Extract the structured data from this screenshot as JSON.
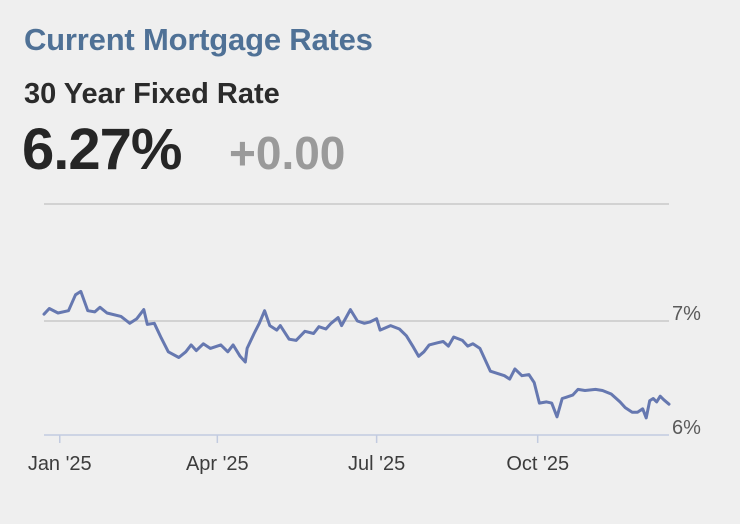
{
  "header": {
    "title": "Current Mortgage Rates",
    "subtitle": "30 Year Fixed Rate",
    "rate": "6.27%",
    "change": "+0.00"
  },
  "colors": {
    "title": "#4f7196",
    "line": "#6678b0",
    "grid": "#c9c9c9",
    "change": "#9a9a9a"
  },
  "chart_data": {
    "type": "line",
    "title": "30 Year Fixed Rate",
    "xlabel": "",
    "ylabel": "",
    "y_unit": "%",
    "ylim": [
      5.9,
      7.45
    ],
    "xlim": [
      "2024-12-23",
      "2025-12-15"
    ],
    "y_ticks": [
      {
        "value": 7,
        "label": "7%"
      },
      {
        "value": 6,
        "label": "6%"
      }
    ],
    "x_ticks": [
      {
        "date": "2025-01-01",
        "label": "Jan '25"
      },
      {
        "date": "2025-04-01",
        "label": "Apr '25"
      },
      {
        "date": "2025-07-01",
        "label": "Jul '25"
      },
      {
        "date": "2025-10-01",
        "label": "Oct '25"
      }
    ],
    "grid": true,
    "series": [
      {
        "points": [
          [
            "2024-12-23",
            7.06
          ],
          [
            "2024-12-26",
            7.11
          ],
          [
            "2024-12-31",
            7.07
          ],
          [
            "2025-01-06",
            7.09
          ],
          [
            "2025-01-10",
            7.23
          ],
          [
            "2025-01-13",
            7.26
          ],
          [
            "2025-01-17",
            7.09
          ],
          [
            "2025-01-21",
            7.08
          ],
          [
            "2025-01-24",
            7.12
          ],
          [
            "2025-01-28",
            7.07
          ],
          [
            "2025-02-05",
            7.04
          ],
          [
            "2025-02-10",
            6.98
          ],
          [
            "2025-02-14",
            7.02
          ],
          [
            "2025-02-18",
            7.1
          ],
          [
            "2025-02-20",
            6.97
          ],
          [
            "2025-02-24",
            6.98
          ],
          [
            "2025-02-28",
            6.85
          ],
          [
            "2025-03-04",
            6.73
          ],
          [
            "2025-03-10",
            6.68
          ],
          [
            "2025-03-14",
            6.73
          ],
          [
            "2025-03-17",
            6.79
          ],
          [
            "2025-03-20",
            6.74
          ],
          [
            "2025-03-24",
            6.8
          ],
          [
            "2025-03-28",
            6.76
          ],
          [
            "2025-04-03",
            6.79
          ],
          [
            "2025-04-07",
            6.73
          ],
          [
            "2025-04-10",
            6.79
          ],
          [
            "2025-04-14",
            6.69
          ],
          [
            "2025-04-17",
            6.64
          ],
          [
            "2025-04-18",
            6.76
          ],
          [
            "2025-04-22",
            6.89
          ],
          [
            "2025-04-25",
            6.98
          ],
          [
            "2025-04-28",
            7.09
          ],
          [
            "2025-05-01",
            6.96
          ],
          [
            "2025-05-05",
            6.92
          ],
          [
            "2025-05-07",
            6.96
          ],
          [
            "2025-05-12",
            6.84
          ],
          [
            "2025-05-16",
            6.83
          ],
          [
            "2025-05-21",
            6.91
          ],
          [
            "2025-05-26",
            6.89
          ],
          [
            "2025-05-29",
            6.95
          ],
          [
            "2025-06-02",
            6.93
          ],
          [
            "2025-06-05",
            6.98
          ],
          [
            "2025-06-09",
            7.03
          ],
          [
            "2025-06-11",
            6.96
          ],
          [
            "2025-06-16",
            7.1
          ],
          [
            "2025-06-20",
            7.0
          ],
          [
            "2025-06-24",
            6.98
          ],
          [
            "2025-06-27",
            6.99
          ],
          [
            "2025-07-01",
            7.02
          ],
          [
            "2025-07-03",
            6.92
          ],
          [
            "2025-07-09",
            6.96
          ],
          [
            "2025-07-14",
            6.93
          ],
          [
            "2025-07-18",
            6.87
          ],
          [
            "2025-07-22",
            6.77
          ],
          [
            "2025-07-25",
            6.69
          ],
          [
            "2025-07-28",
            6.73
          ],
          [
            "2025-07-31",
            6.79
          ],
          [
            "2025-08-05",
            6.81
          ],
          [
            "2025-08-08",
            6.82
          ],
          [
            "2025-08-11",
            6.78
          ],
          [
            "2025-08-14",
            6.86
          ],
          [
            "2025-08-19",
            6.83
          ],
          [
            "2025-08-22",
            6.78
          ],
          [
            "2025-08-25",
            6.8
          ],
          [
            "2025-08-29",
            6.76
          ],
          [
            "2025-09-04",
            6.56
          ],
          [
            "2025-09-08",
            6.54
          ],
          [
            "2025-09-12",
            6.52
          ],
          [
            "2025-09-15",
            6.49
          ],
          [
            "2025-09-18",
            6.58
          ],
          [
            "2025-09-22",
            6.52
          ],
          [
            "2025-09-26",
            6.53
          ],
          [
            "2025-09-29",
            6.46
          ],
          [
            "2025-10-02",
            6.28
          ],
          [
            "2025-10-06",
            6.29
          ],
          [
            "2025-10-09",
            6.28
          ],
          [
            "2025-10-12",
            6.16
          ],
          [
            "2025-10-15",
            6.32
          ],
          [
            "2025-10-17",
            6.33
          ],
          [
            "2025-10-21",
            6.35
          ],
          [
            "2025-10-24",
            6.4
          ],
          [
            "2025-10-28",
            6.39
          ],
          [
            "2025-11-03",
            6.4
          ],
          [
            "2025-11-07",
            6.39
          ],
          [
            "2025-11-12",
            6.36
          ],
          [
            "2025-11-17",
            6.29
          ],
          [
            "2025-11-20",
            6.24
          ],
          [
            "2025-11-24",
            6.2
          ],
          [
            "2025-11-27",
            6.2
          ],
          [
            "2025-11-30",
            6.23
          ],
          [
            "2025-12-02",
            6.15
          ],
          [
            "2025-12-04",
            6.3
          ],
          [
            "2025-12-06",
            6.32
          ],
          [
            "2025-12-08",
            6.29
          ],
          [
            "2025-12-10",
            6.34
          ],
          [
            "2025-12-12",
            6.31
          ],
          [
            "2025-12-15",
            6.27
          ]
        ]
      }
    ]
  }
}
